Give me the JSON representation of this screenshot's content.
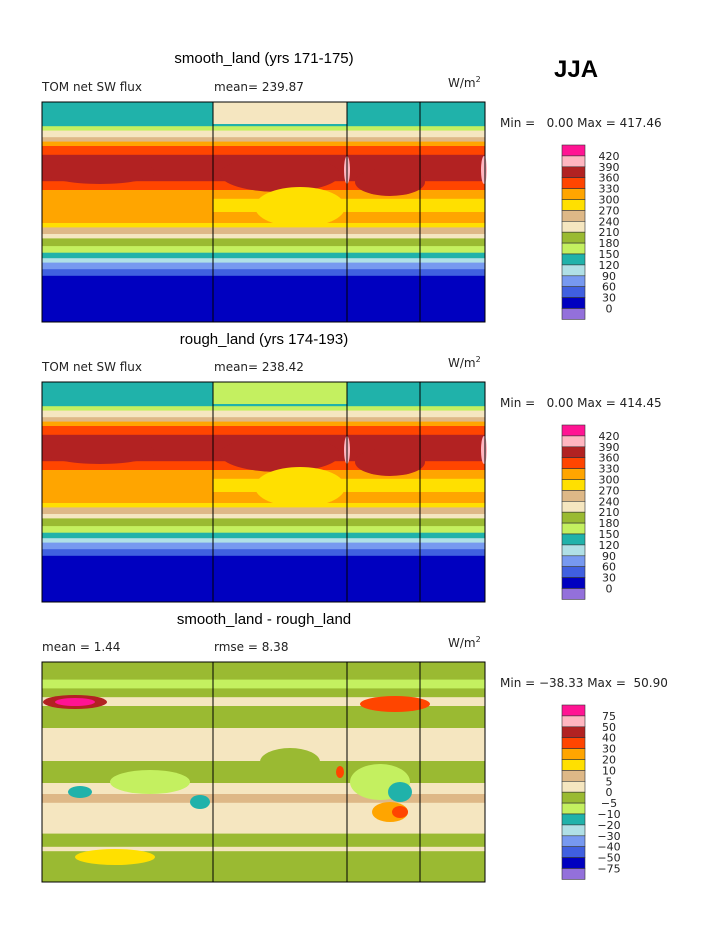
{
  "season": "JJA",
  "chart_data": [
    {
      "type": "heatmap",
      "title": "smooth_land (yrs 171-175)",
      "variable": "TOM net SW flux",
      "stat_text": "mean= 239.87",
      "units": "W/m2",
      "units_base": "W/m",
      "units_exp": "2",
      "minmax_text": "Min =   0.00 Max = 417.46",
      "min": 0.0,
      "max": 417.46,
      "mean": 239.87,
      "colorbar_levels": [
        "420",
        "390",
        "360",
        "330",
        "300",
        "270",
        "240",
        "210",
        "180",
        "150",
        "120",
        "90",
        "60",
        "30",
        "0"
      ]
    },
    {
      "type": "heatmap",
      "title": "rough_land (yrs 174-193)",
      "variable": "TOM net SW flux",
      "stat_text": "mean= 238.42",
      "units": "W/m2",
      "units_base": "W/m",
      "units_exp": "2",
      "minmax_text": "Min =   0.00 Max = 414.45",
      "min": 0.0,
      "max": 414.45,
      "mean": 238.42,
      "colorbar_levels": [
        "420",
        "390",
        "360",
        "330",
        "300",
        "270",
        "240",
        "210",
        "180",
        "150",
        "120",
        "90",
        "60",
        "30",
        "0"
      ]
    },
    {
      "type": "heatmap",
      "title": "smooth_land - rough_land",
      "variable": "mean =   1.44",
      "stat_text": "rmse =   8.38",
      "units": "W/m2",
      "units_base": "W/m",
      "units_exp": "2",
      "minmax_text": "Min = −38.33 Max =  50.90",
      "min": -38.33,
      "max": 50.9,
      "mean": 1.44,
      "rmse": 8.38,
      "colorbar_levels": [
        "75",
        "50",
        "40",
        "30",
        "20",
        "10",
        "5",
        "0",
        "−5",
        "−10",
        "−20",
        "−30",
        "−40",
        "−50",
        "−75"
      ]
    }
  ],
  "colors": [
    "#ff1493",
    "#ffb6c1",
    "#b22222",
    "#ff4500",
    "#ffa500",
    "#ffe000",
    "#deb887",
    "#f5e6c0",
    "#9aba32",
    "#c4f060",
    "#20b2aa",
    "#b0e0e6",
    "#7799f0",
    "#4060e0",
    "#0000c0",
    "#9370db"
  ]
}
